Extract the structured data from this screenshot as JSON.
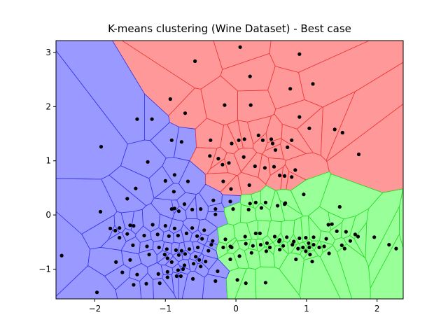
{
  "chart_data": {
    "type": "scatter",
    "title": "K-means clustering (Wine Dataset) - Best case",
    "xlabel": "",
    "ylabel": "",
    "xlim": [
      -2.55,
      2.37
    ],
    "ylim": [
      -1.55,
      3.22
    ],
    "x_ticks": [
      -2,
      -1,
      0,
      1,
      2
    ],
    "y_ticks": [
      -1,
      0,
      1,
      2,
      3
    ],
    "grid": false,
    "legend": "none",
    "colors": {
      "blue": "#9999ff",
      "red": "#ff9999",
      "green": "#99ff99",
      "point": "#000000"
    },
    "points": [
      [
        0.06,
        3.1
      ],
      [
        0.9,
        2.97
      ],
      [
        -0.58,
        2.84
      ],
      [
        0.2,
        2.56
      ],
      [
        0.77,
        2.33
      ],
      [
        1.09,
        2.42
      ],
      [
        -0.93,
        2.14
      ],
      [
        -0.16,
        2.03
      ],
      [
        0.21,
        2.03
      ],
      [
        0.9,
        1.81
      ],
      [
        -0.72,
        1.88
      ],
      [
        -1.4,
        1.77
      ],
      [
        -1.19,
        1.77
      ],
      [
        0.32,
        1.47
      ],
      [
        1.04,
        1.6
      ],
      [
        1.4,
        1.58
      ],
      [
        1.51,
        1.52
      ],
      [
        1.74,
        1.12
      ],
      [
        -1.91,
        1.26
      ],
      [
        -0.91,
        1.38
      ],
      [
        -0.77,
        1.35
      ],
      [
        -0.36,
        1.38
      ],
      [
        0.04,
        1.38
      ],
      [
        0.12,
        1.4
      ],
      [
        -0.06,
        1.32
      ],
      [
        0.38,
        1.38
      ],
      [
        0.5,
        1.4
      ],
      [
        0.52,
        1.32
      ],
      [
        0.56,
        1.2
      ],
      [
        0.73,
        1.25
      ],
      [
        0.79,
        1.38
      ],
      [
        -0.37,
        1.09
      ],
      [
        -0.25,
        1.04
      ],
      [
        -0.19,
        0.93
      ],
      [
        -0.1,
        0.96
      ],
      [
        0.11,
        1.07
      ],
      [
        0.27,
        0.9
      ],
      [
        0.41,
        0.87
      ],
      [
        0.54,
        0.89
      ],
      [
        0.62,
        0.73
      ],
      [
        0.69,
        0.72
      ],
      [
        0.79,
        0.7
      ],
      [
        0.84,
        0.83
      ],
      [
        -1.25,
        0.98
      ],
      [
        -0.87,
        0.74
      ],
      [
        -1.0,
        0.63
      ],
      [
        -0.68,
        0.62
      ],
      [
        -1.42,
        0.49
      ],
      [
        -0.88,
        0.43
      ],
      [
        -0.18,
        0.62
      ],
      [
        -0.07,
        0.48
      ],
      [
        0.19,
        0.55
      ],
      [
        0.96,
        0.38
      ],
      [
        -1.54,
        0.3
      ],
      [
        -0.73,
        0.2
      ],
      [
        -0.87,
        0.12
      ],
      [
        -0.62,
        0.1
      ],
      [
        -0.5,
        0.11
      ],
      [
        -0.32,
        0.27
      ],
      [
        -0.29,
        0.11
      ],
      [
        -0.08,
        0.25
      ],
      [
        0.2,
        0.21
      ],
      [
        0.28,
        0.23
      ],
      [
        0.42,
        0.23
      ],
      [
        0.59,
        0.17
      ],
      [
        0.7,
        0.22
      ],
      [
        1.47,
        0.15
      ],
      [
        -1.92,
        0.06
      ],
      [
        -0.91,
        0.11
      ],
      [
        -0.81,
        0.07
      ],
      [
        -0.29,
        0.01
      ],
      [
        -0.04,
        0.11
      ],
      [
        0.18,
        0.1
      ],
      [
        0.36,
        0.13
      ],
      [
        0.69,
        0.2
      ],
      [
        -1.78,
        -0.25
      ],
      [
        -1.71,
        -0.29
      ],
      [
        -1.65,
        -0.24
      ],
      [
        -1.5,
        -0.19
      ],
      [
        -1.45,
        -0.2
      ],
      [
        -1.18,
        -0.18
      ],
      [
        -1.0,
        -0.2
      ],
      [
        -0.87,
        -0.25
      ],
      [
        -0.62,
        -0.24
      ],
      [
        -0.45,
        -0.28
      ],
      [
        -1.65,
        -0.42
      ],
      [
        -1.54,
        -0.35
      ],
      [
        -1.3,
        -0.38
      ],
      [
        -1.11,
        -0.36
      ],
      [
        -0.95,
        -0.39
      ],
      [
        -0.82,
        -0.38
      ],
      [
        -0.7,
        -0.34
      ],
      [
        -0.55,
        -0.39
      ],
      [
        -0.48,
        -0.44
      ],
      [
        -0.33,
        -0.48
      ],
      [
        -0.15,
        -0.45
      ],
      [
        0.13,
        -0.4
      ],
      [
        0.28,
        -0.34
      ],
      [
        0.34,
        -0.34
      ],
      [
        0.55,
        -0.4
      ],
      [
        0.62,
        -0.46
      ],
      [
        0.72,
        -0.41
      ],
      [
        0.82,
        -0.49
      ],
      [
        0.9,
        -0.43
      ],
      [
        0.99,
        -0.42
      ],
      [
        1.1,
        -0.41
      ],
      [
        1.28,
        -0.44
      ],
      [
        1.31,
        -0.18
      ],
      [
        1.36,
        -0.17
      ],
      [
        1.43,
        -0.3
      ],
      [
        1.56,
        -0.31
      ],
      [
        1.62,
        -0.48
      ],
      [
        1.69,
        -0.36
      ],
      [
        1.73,
        -0.4
      ],
      [
        1.96,
        -0.41
      ],
      [
        2.17,
        -0.55
      ],
      [
        2.27,
        -0.62
      ],
      [
        -1.46,
        -0.56
      ],
      [
        -1.26,
        -0.58
      ],
      [
        -1.09,
        -0.6
      ],
      [
        -0.98,
        -0.63
      ],
      [
        -0.85,
        -0.65
      ],
      [
        -0.77,
        -0.66
      ],
      [
        -0.66,
        -0.63
      ],
      [
        -0.54,
        -0.6
      ],
      [
        -0.35,
        -0.55
      ],
      [
        -0.18,
        -0.6
      ],
      [
        -0.06,
        -0.6
      ],
      [
        0.14,
        -0.53
      ],
      [
        0.24,
        -0.57
      ],
      [
        0.35,
        -0.55
      ],
      [
        0.44,
        -0.52
      ],
      [
        0.48,
        -0.6
      ],
      [
        0.61,
        -0.49
      ],
      [
        0.67,
        -0.57
      ],
      [
        0.8,
        -0.55
      ],
      [
        0.88,
        -0.62
      ],
      [
        0.95,
        -0.6
      ],
      [
        1.04,
        -0.6
      ],
      [
        1.1,
        -0.55
      ],
      [
        1.18,
        -0.6
      ],
      [
        1.25,
        -0.58
      ],
      [
        1.5,
        -0.56
      ],
      [
        1.54,
        -0.62
      ],
      [
        2.46,
        -0.55
      ],
      [
        -2.47,
        -0.75
      ],
      [
        -1.7,
        -0.87
      ],
      [
        -1.5,
        -0.83
      ],
      [
        -1.23,
        -0.73
      ],
      [
        -1.01,
        -0.73
      ],
      [
        -0.97,
        -0.8
      ],
      [
        -0.91,
        -0.87
      ],
      [
        -0.81,
        -0.74
      ],
      [
        -0.72,
        -0.72
      ],
      [
        -0.52,
        -0.83
      ],
      [
        -0.43,
        -0.86
      ],
      [
        -0.08,
        -0.82
      ],
      [
        0.05,
        -0.76
      ],
      [
        0.22,
        -0.7
      ],
      [
        0.43,
        -0.67
      ],
      [
        0.85,
        -0.82
      ],
      [
        1.05,
        -0.73
      ],
      [
        1.08,
        -0.86
      ],
      [
        1.32,
        -0.71
      ],
      [
        -1.61,
        -1.06
      ],
      [
        -1.4,
        -1.1
      ],
      [
        -1.1,
        -1.09
      ],
      [
        -0.97,
        -1.05
      ],
      [
        -0.82,
        -1.02
      ],
      [
        -0.75,
        -1.0
      ],
      [
        -0.6,
        -0.9
      ],
      [
        -0.5,
        -0.95
      ],
      [
        -0.29,
        -1.22
      ],
      [
        0.02,
        -1.2
      ],
      [
        0.14,
        -1.26
      ],
      [
        0.42,
        -1.25
      ],
      [
        -1.45,
        -1.29
      ],
      [
        -1.27,
        -1.27
      ],
      [
        -1.08,
        -1.26
      ],
      [
        -0.97,
        -1.15
      ],
      [
        -0.84,
        -1.13
      ],
      [
        -0.61,
        -1.18
      ],
      [
        -0.26,
        -1.04
      ],
      [
        -1.97,
        -1.43
      ],
      [
        -0.78,
        -1.13
      ],
      [
        -0.73,
        -0.93
      ],
      [
        -0.57,
        -0.77
      ],
      [
        -0.39,
        -0.66
      ],
      [
        -0.08,
        -0.58
      ],
      [
        0.62,
        -0.64
      ],
      [
        0.99,
        -0.67
      ],
      [
        1.03,
        -0.52
      ]
    ]
  }
}
